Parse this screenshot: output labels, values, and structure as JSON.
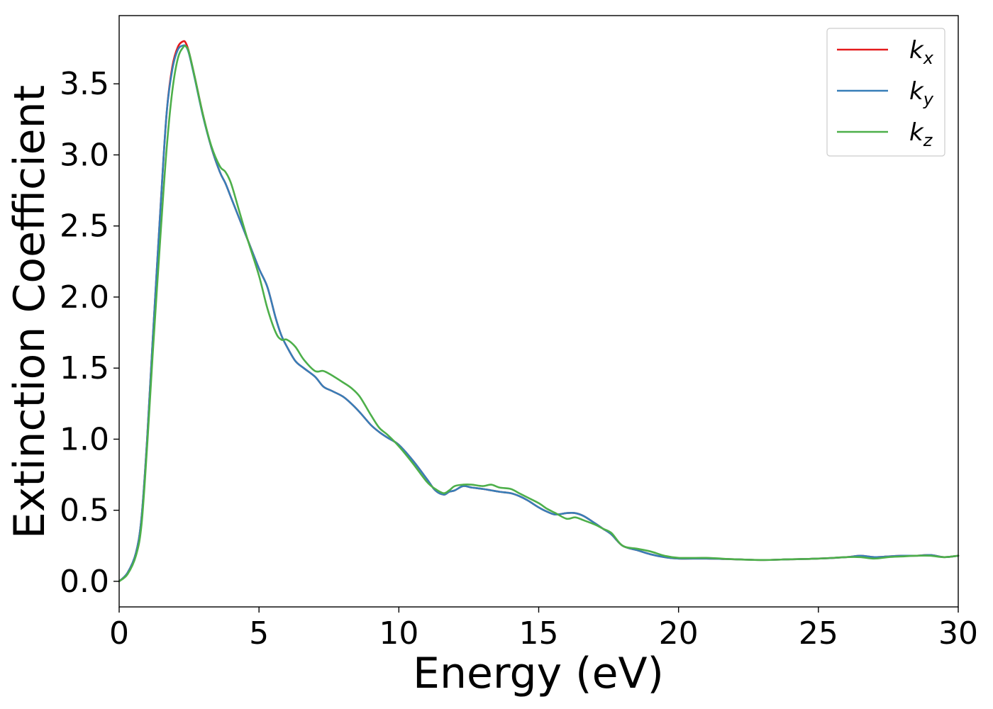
{
  "chart_data": {
    "type": "line",
    "xlabel": "Energy (eV)",
    "ylabel": "Extinction Coefficient",
    "xlim": [
      0,
      30
    ],
    "ylim": [
      -0.18,
      3.98
    ],
    "xticks": [
      "0",
      "5",
      "10",
      "15",
      "20",
      "25",
      "30"
    ],
    "yticks": [
      "0.0",
      "0.5",
      "1.0",
      "1.5",
      "2.0",
      "2.5",
      "3.0",
      "3.5"
    ],
    "xtick_values": [
      0,
      5,
      10,
      15,
      20,
      25,
      30
    ],
    "ytick_values": [
      0.0,
      0.5,
      1.0,
      1.5,
      2.0,
      2.5,
      3.0,
      3.5
    ],
    "grid": false,
    "legend_position": "top-right",
    "series": [
      {
        "name": "k_x",
        "label_base": "k",
        "label_sub": "x",
        "color": "#e41a1c",
        "x": [
          0,
          0.3,
          0.6,
          0.8,
          1.0,
          1.2,
          1.5,
          1.7,
          1.9,
          2.1,
          2.3,
          2.4,
          2.5,
          2.7,
          3.0,
          3.3,
          3.6,
          3.8,
          4.0,
          4.3,
          4.6,
          5.0,
          5.3,
          5.6,
          5.8,
          6.0,
          6.3,
          6.6,
          7.0,
          7.3,
          7.6,
          8.0,
          8.3,
          8.6,
          9.0,
          9.3,
          9.6,
          10.0,
          10.5,
          11.0,
          11.3,
          11.6,
          11.8,
          12.0,
          12.3,
          12.6,
          13.0,
          13.3,
          13.6,
          14.0,
          14.3,
          14.6,
          15.0,
          15.3,
          15.6,
          16.0,
          16.3,
          16.6,
          17.0,
          17.3,
          17.6,
          18.0,
          18.5,
          19.0,
          19.5,
          20.0,
          21.0,
          22.0,
          23.0,
          24.0,
          25.0,
          26.0,
          26.5,
          27.0,
          27.5,
          28.0,
          28.5,
          29.0,
          29.5,
          30.0
        ],
        "y": [
          0.0,
          0.06,
          0.2,
          0.45,
          1.0,
          1.7,
          2.7,
          3.3,
          3.62,
          3.76,
          3.8,
          3.78,
          3.72,
          3.55,
          3.28,
          3.05,
          2.88,
          2.8,
          2.7,
          2.55,
          2.4,
          2.2,
          2.07,
          1.85,
          1.73,
          1.65,
          1.55,
          1.5,
          1.44,
          1.37,
          1.34,
          1.3,
          1.25,
          1.19,
          1.1,
          1.05,
          1.01,
          0.96,
          0.85,
          0.72,
          0.64,
          0.61,
          0.63,
          0.64,
          0.67,
          0.66,
          0.65,
          0.64,
          0.63,
          0.62,
          0.6,
          0.57,
          0.52,
          0.49,
          0.47,
          0.48,
          0.48,
          0.46,
          0.41,
          0.37,
          0.33,
          0.25,
          0.22,
          0.19,
          0.17,
          0.16,
          0.16,
          0.155,
          0.15,
          0.155,
          0.16,
          0.17,
          0.18,
          0.17,
          0.175,
          0.18,
          0.18,
          0.185,
          0.17,
          0.18
        ]
      },
      {
        "name": "k_y",
        "label_base": "k",
        "label_sub": "y",
        "color": "#377eb8",
        "x": [
          0,
          0.3,
          0.6,
          0.8,
          1.0,
          1.2,
          1.5,
          1.7,
          1.9,
          2.1,
          2.3,
          2.4,
          2.5,
          2.7,
          3.0,
          3.3,
          3.6,
          3.8,
          4.0,
          4.3,
          4.6,
          5.0,
          5.3,
          5.6,
          5.8,
          6.0,
          6.3,
          6.6,
          7.0,
          7.3,
          7.6,
          8.0,
          8.3,
          8.6,
          9.0,
          9.3,
          9.6,
          10.0,
          10.5,
          11.0,
          11.3,
          11.6,
          11.8,
          12.0,
          12.3,
          12.6,
          13.0,
          13.3,
          13.6,
          14.0,
          14.3,
          14.6,
          15.0,
          15.3,
          15.6,
          16.0,
          16.3,
          16.6,
          17.0,
          17.3,
          17.6,
          18.0,
          18.5,
          19.0,
          19.5,
          20.0,
          21.0,
          22.0,
          23.0,
          24.0,
          25.0,
          26.0,
          26.5,
          27.0,
          27.5,
          28.0,
          28.5,
          29.0,
          29.5,
          30.0
        ],
        "y": [
          0.0,
          0.06,
          0.2,
          0.45,
          1.0,
          1.7,
          2.7,
          3.3,
          3.6,
          3.74,
          3.77,
          3.76,
          3.71,
          3.54,
          3.27,
          3.05,
          2.88,
          2.8,
          2.7,
          2.55,
          2.4,
          2.2,
          2.07,
          1.85,
          1.73,
          1.65,
          1.55,
          1.5,
          1.44,
          1.37,
          1.34,
          1.3,
          1.25,
          1.19,
          1.1,
          1.05,
          1.01,
          0.96,
          0.85,
          0.72,
          0.64,
          0.61,
          0.63,
          0.64,
          0.67,
          0.66,
          0.65,
          0.64,
          0.63,
          0.62,
          0.6,
          0.57,
          0.52,
          0.49,
          0.47,
          0.48,
          0.48,
          0.46,
          0.41,
          0.37,
          0.33,
          0.25,
          0.22,
          0.19,
          0.17,
          0.16,
          0.16,
          0.155,
          0.15,
          0.155,
          0.16,
          0.17,
          0.18,
          0.17,
          0.175,
          0.18,
          0.18,
          0.185,
          0.17,
          0.18
        ]
      },
      {
        "name": "k_z",
        "label_base": "k",
        "label_sub": "z",
        "color": "#4daf4a",
        "x": [
          0,
          0.3,
          0.6,
          0.8,
          1.0,
          1.2,
          1.5,
          1.7,
          1.9,
          2.1,
          2.3,
          2.4,
          2.5,
          2.7,
          3.0,
          3.3,
          3.6,
          3.8,
          4.0,
          4.3,
          4.6,
          5.0,
          5.3,
          5.6,
          5.8,
          6.0,
          6.3,
          6.6,
          7.0,
          7.3,
          7.6,
          8.0,
          8.3,
          8.6,
          9.0,
          9.3,
          9.6,
          10.0,
          10.5,
          11.0,
          11.3,
          11.6,
          11.8,
          12.0,
          12.3,
          12.6,
          13.0,
          13.3,
          13.6,
          14.0,
          14.3,
          14.6,
          15.0,
          15.3,
          15.6,
          16.0,
          16.3,
          16.6,
          17.0,
          17.3,
          17.6,
          18.0,
          18.5,
          19.0,
          19.5,
          20.0,
          21.0,
          22.0,
          23.0,
          24.0,
          25.0,
          26.0,
          26.5,
          27.0,
          27.5,
          28.0,
          28.5,
          29.0,
          29.5,
          30.0
        ],
        "y": [
          0.0,
          0.05,
          0.18,
          0.4,
          0.95,
          1.6,
          2.5,
          3.05,
          3.45,
          3.68,
          3.76,
          3.76,
          3.72,
          3.55,
          3.28,
          3.06,
          2.92,
          2.88,
          2.8,
          2.6,
          2.4,
          2.15,
          1.92,
          1.75,
          1.7,
          1.7,
          1.65,
          1.56,
          1.48,
          1.48,
          1.45,
          1.4,
          1.36,
          1.3,
          1.17,
          1.08,
          1.03,
          0.95,
          0.83,
          0.7,
          0.65,
          0.62,
          0.64,
          0.67,
          0.68,
          0.68,
          0.67,
          0.68,
          0.66,
          0.65,
          0.62,
          0.59,
          0.55,
          0.51,
          0.48,
          0.44,
          0.45,
          0.43,
          0.4,
          0.37,
          0.34,
          0.25,
          0.23,
          0.21,
          0.18,
          0.165,
          0.165,
          0.155,
          0.15,
          0.155,
          0.16,
          0.17,
          0.17,
          0.16,
          0.17,
          0.175,
          0.18,
          0.18,
          0.17,
          0.18
        ]
      }
    ]
  }
}
